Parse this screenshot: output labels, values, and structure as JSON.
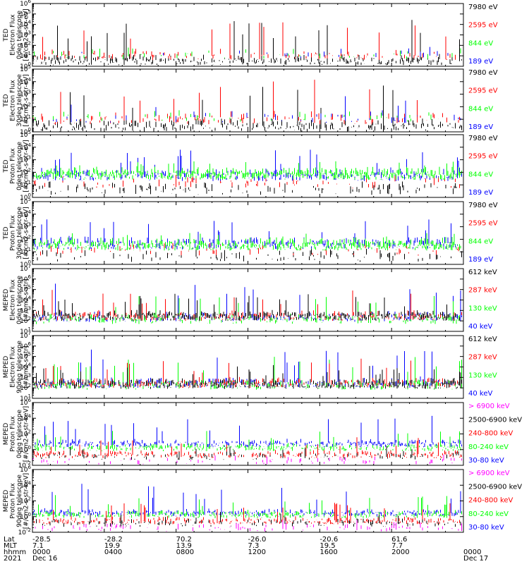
{
  "colors": {
    "black": "#000000",
    "red": "#ff0000",
    "green": "#00ff00",
    "blue": "#0000ff",
    "magenta": "#ff00ff"
  },
  "chart_data": [
    {
      "type": "line",
      "ylabel_lines": [
        "TED",
        "Electron Flux",
        "0deg telescope",
        "[#/cm2-s-str-eV]"
      ],
      "log_scale": true,
      "ylim_exp": [
        0,
        6
      ],
      "ytick_labels": [
        "10^0",
        "10^1",
        "10^2",
        "10^3",
        "10^4",
        "10^5",
        "10^6"
      ],
      "series": [
        {
          "name": "7980 eV",
          "color": "#000000",
          "base_exp": 0.4,
          "spike_exp": 4.6,
          "density": 0.55
        },
        {
          "name": "2595 eV",
          "color": "#ff0000",
          "base_exp": 0.9,
          "spike_exp": 4.2,
          "density": 0.25
        },
        {
          "name": "844 eV",
          "color": "#00ff00",
          "base_exp": 1.0,
          "spike_exp": 2.2,
          "density": 0.1
        },
        {
          "name": "189 eV",
          "color": "#0000ff",
          "base_exp": 1.0,
          "spike_exp": 2.0,
          "density": 0.05
        }
      ]
    },
    {
      "type": "line",
      "ylabel_lines": [
        "TED",
        "Electron Flux",
        "30deg telescope",
        "[#/cm2-s-str-eV]"
      ],
      "log_scale": true,
      "ylim_exp": [
        0,
        5
      ],
      "ytick_labels": [
        "10^0",
        "10^1",
        "10^2",
        "10^3",
        "10^4",
        "10^5"
      ],
      "series": [
        {
          "name": "7980 eV",
          "color": "#000000",
          "base_exp": 0.3,
          "spike_exp": 3.8,
          "density": 0.55
        },
        {
          "name": "2595 eV",
          "color": "#ff0000",
          "base_exp": 0.9,
          "spike_exp": 4.2,
          "density": 0.3
        },
        {
          "name": "844 eV",
          "color": "#00ff00",
          "base_exp": 1.0,
          "spike_exp": 2.5,
          "density": 0.12
        },
        {
          "name": "189 eV",
          "color": "#0000ff",
          "base_exp": 1.0,
          "spike_exp": 3.0,
          "density": 0.12
        }
      ]
    },
    {
      "type": "line",
      "ylabel_lines": [
        "TED",
        "Proton Flux",
        "0deg telescope",
        "[#/cm2-s-str-eV]"
      ],
      "log_scale": true,
      "ylim_exp": [
        0,
        5
      ],
      "ytick_labels": [
        "10^0",
        "10^1",
        "10^2",
        "10^3",
        "10^4",
        "10^5"
      ],
      "series": [
        {
          "name": "7980 eV",
          "color": "#000000",
          "base_exp": 0.5,
          "spike_exp": 1.2,
          "density": 0.25
        },
        {
          "name": "2595 eV",
          "color": "#ff0000",
          "base_exp": 1.0,
          "spike_exp": 1.8,
          "density": 0.15
        },
        {
          "name": "189 eV",
          "color": "#0000ff",
          "base_exp": 1.6,
          "spike_exp": 3.8,
          "density": 0.6
        },
        {
          "name": "844 eV",
          "color": "#00ff00",
          "base_exp": 1.7,
          "spike_exp": 2.9,
          "density": 0.95
        }
      ]
    },
    {
      "type": "line",
      "ylabel_lines": [
        "TED",
        "Proton Flux",
        "30deg telescope",
        "[#/cm2-s-str-eV]"
      ],
      "log_scale": true,
      "ylim_exp": [
        0,
        5
      ],
      "ytick_labels": [
        "10^0",
        "10^1",
        "10^2",
        "10^3",
        "10^4",
        "10^5"
      ],
      "series": [
        {
          "name": "7980 eV",
          "color": "#000000",
          "base_exp": 0.5,
          "spike_exp": 1.2,
          "density": 0.2
        },
        {
          "name": "2595 eV",
          "color": "#ff0000",
          "base_exp": 1.0,
          "spike_exp": 1.8,
          "density": 0.15
        },
        {
          "name": "189 eV",
          "color": "#0000ff",
          "base_exp": 1.5,
          "spike_exp": 3.6,
          "density": 0.6
        },
        {
          "name": "844 eV",
          "color": "#00ff00",
          "base_exp": 1.4,
          "spike_exp": 2.5,
          "density": 0.95
        }
      ]
    },
    {
      "type": "line",
      "ylabel_lines": [
        "MEPED",
        "Electron Flux",
        "0deg telescope",
        "[#/cm2-s-str]"
      ],
      "log_scale": true,
      "ylim_exp": [
        1,
        7
      ],
      "ytick_labels": [
        "10^1",
        "10^2",
        "10^3",
        "10^4",
        "10^5",
        "10^6",
        "10^7"
      ],
      "series": [
        {
          "name": "40 keV",
          "color": "#0000ff",
          "base_exp": 2.2,
          "spike_exp": 5.8,
          "density": 0.5
        },
        {
          "name": "130 keV",
          "color": "#00ff00",
          "base_exp": 2.0,
          "spike_exp": 4.5,
          "density": 0.4
        },
        {
          "name": "287 keV",
          "color": "#ff0000",
          "base_exp": 2.3,
          "spike_exp": 5.0,
          "density": 0.5
        },
        {
          "name": "612 keV",
          "color": "#000000",
          "base_exp": 2.3,
          "spike_exp": 4.6,
          "density": 0.85
        }
      ]
    },
    {
      "type": "line",
      "ylabel_lines": [
        "MEPED",
        "Electron Flux",
        "90deg telescope",
        "[#/cm2-s-str]"
      ],
      "log_scale": true,
      "ylim_exp": [
        1,
        7
      ],
      "ytick_labels": [
        "10^1",
        "10^2",
        "10^3",
        "10^4",
        "10^5",
        "10^6",
        "10^7"
      ],
      "series": [
        {
          "name": "40 keV",
          "color": "#0000ff",
          "base_exp": 2.3,
          "spike_exp": 5.8,
          "density": 0.6
        },
        {
          "name": "130 keV",
          "color": "#00ff00",
          "base_exp": 2.1,
          "spike_exp": 5.0,
          "density": 0.5
        },
        {
          "name": "287 keV",
          "color": "#ff0000",
          "base_exp": 2.3,
          "spike_exp": 4.8,
          "density": 0.5
        },
        {
          "name": "612 keV",
          "color": "#000000",
          "base_exp": 2.2,
          "spike_exp": 4.2,
          "density": 0.85
        }
      ]
    },
    {
      "type": "line",
      "ylabel_lines": [
        "MEPED",
        "Proton Flux",
        "0deg telescope",
        "[#/cm2-s-str-keV]"
      ],
      "log_scale": true,
      "ylim_exp": [
        -2,
        6
      ],
      "ytick_labels": [
        "10^-2",
        "10^0",
        "10^2",
        "10^4",
        "10^6"
      ],
      "series": [
        {
          "name": "30-80 keV",
          "color": "#0000ff",
          "base_exp": 0.6,
          "spike_exp": 4.4,
          "density": 0.8
        },
        {
          "name": "80-240 keV",
          "color": "#00ff00",
          "base_exp": 0.1,
          "spike_exp": 2.4,
          "density": 0.7
        },
        {
          "name": "240-800 keV",
          "color": "#ff0000",
          "base_exp": -0.8,
          "spike_exp": 1.6,
          "density": 0.6
        },
        {
          "name": "2500-6900 keV",
          "color": "#000000",
          "base_exp": -1.0,
          "spike_exp": 0.5,
          "density": 0.2
        },
        {
          "name": "> 6900 keV",
          "color": "#ff00ff",
          "base_exp": -1.6,
          "spike_exp": -0.6,
          "density": 0.15
        }
      ]
    },
    {
      "type": "line",
      "ylabel_lines": [
        "MEPED",
        "Proton Flux",
        "90deg telescope",
        "[#/cm2-s-str-keV]"
      ],
      "log_scale": true,
      "ylim_exp": [
        -2,
        6
      ],
      "ytick_labels": [
        "10^-2",
        "10^0",
        "10^2",
        "10^4",
        "10^6"
      ],
      "series": [
        {
          "name": "30-80 keV",
          "color": "#0000ff",
          "base_exp": 0.3,
          "spike_exp": 4.2,
          "density": 0.8
        },
        {
          "name": "80-240 keV",
          "color": "#00ff00",
          "base_exp": 0.1,
          "spike_exp": 2.8,
          "density": 0.7
        },
        {
          "name": "240-800 keV",
          "color": "#ff0000",
          "base_exp": -0.7,
          "spike_exp": 1.8,
          "density": 0.6
        },
        {
          "name": "2500-6900 keV",
          "color": "#000000",
          "base_exp": -1.0,
          "spike_exp": 0.6,
          "density": 0.3
        },
        {
          "name": "> 6900 keV",
          "color": "#ff00ff",
          "base_exp": -1.6,
          "spike_exp": -0.4,
          "density": 0.25
        }
      ]
    }
  ],
  "legends": [
    [
      {
        "text": "7980 eV",
        "color": "#000000"
      },
      {
        "text": "2595 eV",
        "color": "#ff0000"
      },
      {
        "text": "844 eV",
        "color": "#00ff00"
      },
      {
        "text": "189 eV",
        "color": "#0000ff"
      }
    ],
    [
      {
        "text": "7980 eV",
        "color": "#000000"
      },
      {
        "text": "2595 eV",
        "color": "#ff0000"
      },
      {
        "text": "844 eV",
        "color": "#00ff00"
      },
      {
        "text": "189 eV",
        "color": "#0000ff"
      }
    ],
    [
      {
        "text": "7980 eV",
        "color": "#000000"
      },
      {
        "text": "2595 eV",
        "color": "#ff0000"
      },
      {
        "text": "844 eV",
        "color": "#00ff00"
      },
      {
        "text": "189 eV",
        "color": "#0000ff"
      }
    ],
    [
      {
        "text": "7980 eV",
        "color": "#000000"
      },
      {
        "text": "2595 eV",
        "color": "#ff0000"
      },
      {
        "text": "844 eV",
        "color": "#00ff00"
      },
      {
        "text": "189 eV",
        "color": "#0000ff"
      }
    ],
    [
      {
        "text": "612 keV",
        "color": "#000000"
      },
      {
        "text": "287 keV",
        "color": "#ff0000"
      },
      {
        "text": "130 keV",
        "color": "#00ff00"
      },
      {
        "text": "40 keV",
        "color": "#0000ff"
      }
    ],
    [
      {
        "text": "612 keV",
        "color": "#000000"
      },
      {
        "text": "287 keV",
        "color": "#ff0000"
      },
      {
        "text": "130 keV",
        "color": "#00ff00"
      },
      {
        "text": "40 keV",
        "color": "#0000ff"
      }
    ],
    [
      {
        "text": "> 6900 keV",
        "color": "#ff00ff"
      },
      {
        "text": "2500-6900 keV",
        "color": "#000000"
      },
      {
        "text": "240-800 keV",
        "color": "#ff0000"
      },
      {
        "text": "80-240 keV",
        "color": "#00ff00"
      },
      {
        "text": "30-80 keV",
        "color": "#0000ff"
      }
    ],
    [
      {
        "text": "> 6900 keV",
        "color": "#ff00ff"
      },
      {
        "text": "2500-6900 keV",
        "color": "#000000"
      },
      {
        "text": "240-800 keV",
        "color": "#ff0000"
      },
      {
        "text": "80-240 keV",
        "color": "#00ff00"
      },
      {
        "text": "30-80 keV",
        "color": "#0000ff"
      }
    ]
  ],
  "time_axis": {
    "row_labels": [
      "Lat",
      "MLT",
      "hhmm",
      "2021"
    ],
    "columns": [
      {
        "lat": "-28.5",
        "mlt": "7.1",
        "hhmm": "0000",
        "date": "Dec 16"
      },
      {
        "lat": "-28.2",
        "mlt": "19.9",
        "hhmm": "0400",
        "date": ""
      },
      {
        "lat": "70.2",
        "mlt": "13.9",
        "hhmm": "0800",
        "date": ""
      },
      {
        "lat": "-26.0",
        "mlt": "7.3",
        "hhmm": "1200",
        "date": ""
      },
      {
        "lat": "-20.6",
        "mlt": "19.5",
        "hhmm": "1600",
        "date": ""
      },
      {
        "lat": "61.6",
        "mlt": "7.7",
        "hhmm": "2000",
        "date": ""
      },
      {
        "lat": "",
        "mlt": "",
        "hhmm": "0000",
        "date": "Dec 17"
      }
    ]
  }
}
